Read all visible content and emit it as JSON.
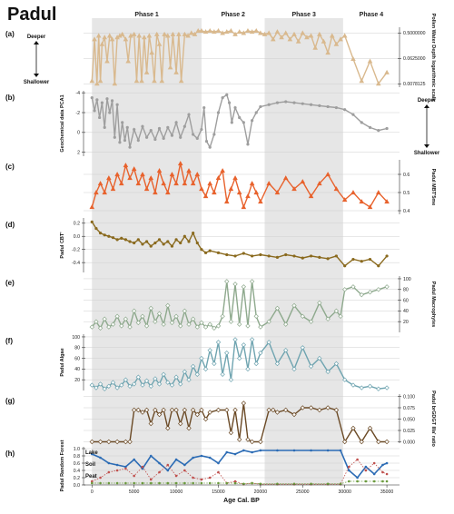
{
  "title": "Padul",
  "phases": [
    {
      "label": "Phase 1",
      "start": 0,
      "end": 13000,
      "shaded": true
    },
    {
      "label": "Phase 2",
      "start": 13000,
      "end": 20500,
      "shaded": false
    },
    {
      "label": "Phase 3",
      "start": 20500,
      "end": 29800,
      "shaded": true
    },
    {
      "label": "Phase 4",
      "start": 29800,
      "end": 36500,
      "shaded": false
    }
  ],
  "x_axis": {
    "label": "Age Cal. BP",
    "min": -1000,
    "max": 36500,
    "ticks": [
      0,
      5000,
      10000,
      15000,
      20000,
      25000,
      30000,
      35000
    ],
    "tick_labels": [
      "0",
      "5000",
      "10000",
      "15000",
      "20000",
      "25000",
      "30000",
      "35000"
    ]
  },
  "colors": {
    "pollen": "#d9b98e",
    "geochem": "#9e9e9e",
    "mbt": "#e8622d",
    "cbt": "#8a6a1e",
    "macrophytes": "#8ea98d",
    "algae": "#6fa4b0",
    "brgdgt": "#6b4a26",
    "lake": "#2c6cb5",
    "soil": "#c0504d",
    "peat": "#6a9a3c",
    "phase_shade": "#e6e6e6"
  },
  "chart_data": [
    {
      "panel": "(a)",
      "type": "line",
      "color_key": "pollen",
      "marker": "triangle",
      "ylabel": "Pollen Water Depth logarithmic scale",
      "left_top": "Deeper",
      "left_bottom": "Shallower",
      "y_scale": "log",
      "ylim": [
        0.006,
        0.8
      ],
      "tick_values": [
        0.5,
        0.0625,
        0.0078125
      ],
      "tick_labels": [
        "0.5000000",
        "0.0625000",
        "0.0078125"
      ],
      "tick_side": "right",
      "x": [
        0,
        300,
        600,
        800,
        1000,
        1200,
        1500,
        1800,
        2100,
        2400,
        2700,
        3000,
        3300,
        3600,
        4000,
        4300,
        4600,
        5000,
        5300,
        5600,
        5900,
        6200,
        6500,
        6800,
        7100,
        7400,
        7700,
        8000,
        8300,
        8600,
        9000,
        9300,
        9600,
        10000,
        10300,
        10600,
        11000,
        11400,
        11800,
        12200,
        12600,
        13000,
        13500,
        14000,
        14500,
        15000,
        15500,
        16000,
        16500,
        17000,
        17500,
        18000,
        18500,
        19000,
        19500,
        20000,
        20500,
        21000,
        21500,
        22000,
        22500,
        23000,
        23500,
        24000,
        24500,
        25000,
        25500,
        26000,
        26500,
        27000,
        27500,
        28000,
        28500,
        29000,
        29500,
        30000,
        31000,
        32000,
        33000,
        34000,
        35000
      ],
      "y": [
        0.01,
        0.3,
        0.008,
        0.4,
        0.01,
        0.2,
        0.35,
        0.05,
        0.4,
        0.3,
        0.008,
        0.35,
        0.4,
        0.45,
        0.3,
        0.05,
        0.4,
        0.45,
        0.01,
        0.4,
        0.01,
        0.35,
        0.02,
        0.4,
        0.1,
        0.01,
        0.45,
        0.2,
        0.01,
        0.45,
        0.4,
        0.03,
        0.45,
        0.02,
        0.45,
        0.01,
        0.45,
        0.4,
        0.5,
        0.45,
        0.6,
        0.6,
        0.55,
        0.6,
        0.55,
        0.6,
        0.5,
        0.55,
        0.6,
        0.45,
        0.55,
        0.5,
        0.6,
        0.55,
        0.6,
        0.5,
        0.45,
        0.5,
        0.3,
        0.55,
        0.35,
        0.5,
        0.3,
        0.45,
        0.25,
        0.5,
        0.35,
        0.4,
        0.15,
        0.45,
        0.25,
        0.1,
        0.4,
        0.2,
        0.3,
        0.4,
        0.06,
        0.01,
        0.05,
        0.008,
        0.02
      ]
    },
    {
      "panel": "(b)",
      "type": "line",
      "color_key": "geochem",
      "marker": "circle",
      "ylabel": "Geochemical data PCA1",
      "right_top": "Deeper",
      "right_bottom": "Shallower",
      "y_scale": "linear",
      "y_inverted": true,
      "ylim": [
        -4.2,
        2.4
      ],
      "tick_values": [
        -4,
        -2,
        0,
        2
      ],
      "tick_labels": [
        "-4",
        "-2",
        "0",
        "2"
      ],
      "tick_side": "left",
      "x": [
        0,
        300,
        600,
        900,
        1200,
        1500,
        1800,
        2100,
        2400,
        2700,
        3000,
        3300,
        3600,
        3900,
        4200,
        4500,
        5000,
        5500,
        6000,
        6500,
        7000,
        7500,
        8000,
        8500,
        9000,
        9500,
        10000,
        10500,
        11000,
        11500,
        12000,
        12500,
        13000,
        13300,
        13600,
        14000,
        14500,
        15000,
        15500,
        16000,
        16300,
        16600,
        17000,
        17500,
        18000,
        18500,
        19000,
        19500,
        20000,
        21000,
        22000,
        23000,
        24000,
        25000,
        26000,
        27000,
        28000,
        29000,
        30000,
        31000,
        32000,
        33000,
        34000,
        35000
      ],
      "y": [
        -3.5,
        -2.2,
        -3.3,
        -1.5,
        -3.0,
        -0.5,
        -3.4,
        -2.0,
        -3.2,
        0.5,
        -2.8,
        1.0,
        -1.0,
        0.8,
        -0.5,
        1.5,
        -0.3,
        0.8,
        -0.6,
        0.5,
        -0.2,
        0.7,
        -0.4,
        0.6,
        -0.5,
        0.3,
        -1.0,
        0.5,
        -0.6,
        -1.8,
        0.2,
        0.6,
        -0.3,
        -2.5,
        0.9,
        1.5,
        0.2,
        -2.0,
        -3.5,
        -3.8,
        -3.0,
        -1.0,
        -2.5,
        -1.5,
        -1.0,
        1.2,
        -1.2,
        -2.0,
        -2.6,
        -2.8,
        -3.0,
        -3.1,
        -3.0,
        -2.9,
        -2.8,
        -2.7,
        -2.6,
        -2.5,
        -2.3,
        -1.8,
        -1.0,
        -0.5,
        -0.2,
        -0.4
      ]
    },
    {
      "panel": "(c)",
      "type": "line",
      "color_key": "mbt",
      "marker": "triangle",
      "ylabel": "Padul MBT'5me",
      "y_scale": "linear",
      "ylim": [
        0.38,
        0.68
      ],
      "tick_values": [
        0.4,
        0.5,
        0.6
      ],
      "tick_labels": [
        "0.4",
        "0.5",
        "0.6"
      ],
      "tick_side": "right",
      "x": [
        0,
        500,
        1000,
        1500,
        2000,
        2500,
        3000,
        3500,
        4000,
        4500,
        5000,
        5500,
        6000,
        6500,
        7000,
        7500,
        8000,
        8500,
        9000,
        9500,
        10000,
        10500,
        11000,
        11500,
        12000,
        12500,
        13000,
        13500,
        14000,
        14500,
        15000,
        15500,
        16000,
        16500,
        17000,
        17500,
        18000,
        18500,
        19000,
        19500,
        20000,
        21000,
        22000,
        23000,
        24000,
        25000,
        26000,
        27000,
        28000,
        29000,
        30000,
        31000,
        32000,
        33000,
        34000,
        35000
      ],
      "y": [
        0.42,
        0.5,
        0.55,
        0.5,
        0.58,
        0.52,
        0.6,
        0.55,
        0.65,
        0.58,
        0.63,
        0.55,
        0.6,
        0.52,
        0.58,
        0.5,
        0.62,
        0.55,
        0.5,
        0.6,
        0.55,
        0.66,
        0.55,
        0.62,
        0.55,
        0.6,
        0.52,
        0.48,
        0.55,
        0.5,
        0.58,
        0.62,
        0.45,
        0.52,
        0.58,
        0.5,
        0.42,
        0.48,
        0.55,
        0.5,
        0.45,
        0.55,
        0.5,
        0.58,
        0.52,
        0.56,
        0.48,
        0.55,
        0.6,
        0.52,
        0.46,
        0.5,
        0.45,
        0.42,
        0.5,
        0.45
      ]
    },
    {
      "panel": "(d)",
      "type": "line",
      "color_key": "cbt",
      "marker": "circle",
      "ylabel": "Padul CBT'",
      "y_scale": "linear",
      "ylim": [
        -0.55,
        0.28
      ],
      "tick_values": [
        0.2,
        0.0,
        -0.2,
        -0.4
      ],
      "tick_labels": [
        "0.2",
        "0.0",
        "-0.2",
        "-0.4"
      ],
      "tick_side": "left",
      "x": [
        0,
        500,
        1000,
        1500,
        2000,
        2500,
        3000,
        3500,
        4000,
        4500,
        5000,
        5500,
        6000,
        6500,
        7000,
        7500,
        8000,
        8500,
        9000,
        9500,
        10000,
        10500,
        11000,
        11500,
        12000,
        12500,
        13000,
        13500,
        14000,
        15000,
        16000,
        17000,
        18000,
        19000,
        20000,
        21000,
        22000,
        23000,
        24000,
        25000,
        26000,
        27000,
        28000,
        29000,
        30000,
        31000,
        32000,
        33000,
        34000,
        35000
      ],
      "y": [
        0.22,
        0.12,
        0.05,
        0.02,
        0.0,
        -0.02,
        -0.05,
        -0.03,
        -0.05,
        -0.08,
        -0.1,
        -0.05,
        -0.12,
        -0.08,
        -0.15,
        -0.1,
        -0.05,
        -0.12,
        -0.08,
        -0.15,
        -0.05,
        -0.1,
        0.0,
        -0.08,
        0.05,
        -0.1,
        -0.2,
        -0.25,
        -0.22,
        -0.25,
        -0.28,
        -0.3,
        -0.26,
        -0.3,
        -0.28,
        -0.3,
        -0.32,
        -0.28,
        -0.3,
        -0.33,
        -0.3,
        -0.32,
        -0.34,
        -0.3,
        -0.45,
        -0.35,
        -0.38,
        -0.35,
        -0.45,
        -0.3
      ]
    },
    {
      "panel": "(e)",
      "type": "line",
      "color_key": "macrophytes",
      "marker": "diamond",
      "ylabel": "Padul Macrophytes",
      "y_scale": "linear",
      "ylim": [
        0,
        105
      ],
      "tick_values": [
        20,
        40,
        60,
        80,
        100
      ],
      "tick_labels": [
        "20",
        "40",
        "60",
        "80",
        "100"
      ],
      "tick_side": "right",
      "x": [
        0,
        500,
        1000,
        1500,
        2000,
        2500,
        3000,
        3500,
        4000,
        4500,
        5000,
        5500,
        6000,
        6500,
        7000,
        7500,
        8000,
        8500,
        9000,
        9500,
        10000,
        10500,
        11000,
        11500,
        12000,
        12500,
        13000,
        13500,
        14000,
        14500,
        15000,
        15500,
        16000,
        16500,
        17000,
        17500,
        18000,
        18500,
        19000,
        19500,
        20000,
        21000,
        22000,
        23000,
        24000,
        25000,
        26000,
        27000,
        28000,
        29000,
        29500,
        30000,
        31000,
        32000,
        33000,
        34000,
        35000
      ],
      "y": [
        10,
        20,
        8,
        25,
        10,
        15,
        30,
        12,
        25,
        10,
        40,
        18,
        30,
        12,
        45,
        20,
        35,
        15,
        50,
        18,
        30,
        12,
        40,
        15,
        25,
        10,
        18,
        10,
        15,
        8,
        12,
        30,
        95,
        20,
        90,
        15,
        85,
        12,
        95,
        30,
        10,
        20,
        45,
        15,
        50,
        30,
        20,
        55,
        25,
        40,
        30,
        80,
        85,
        70,
        75,
        80,
        85
      ]
    },
    {
      "panel": "(f)",
      "type": "line",
      "color_key": "algae",
      "marker": "diamond",
      "ylabel": "Padul Algae",
      "y_scale": "linear",
      "ylim": [
        0,
        105
      ],
      "tick_values": [
        20,
        40,
        60,
        80,
        100
      ],
      "tick_labels": [
        "20",
        "40",
        "60",
        "80",
        "100"
      ],
      "tick_side": "left",
      "x": [
        0,
        500,
        1000,
        1500,
        2000,
        2500,
        3000,
        3500,
        4000,
        4500,
        5000,
        5500,
        6000,
        6500,
        7000,
        7500,
        8000,
        8500,
        9000,
        9500,
        10000,
        10500,
        11000,
        11500,
        12000,
        12500,
        13000,
        13500,
        14000,
        14500,
        15000,
        15500,
        16000,
        16500,
        17000,
        17500,
        18000,
        18500,
        19000,
        19500,
        20000,
        21000,
        22000,
        23000,
        24000,
        25000,
        26000,
        27000,
        28000,
        29000,
        30000,
        31000,
        32000,
        33000,
        34000,
        35000
      ],
      "y": [
        10,
        5,
        12,
        3,
        8,
        15,
        5,
        10,
        20,
        8,
        12,
        25,
        10,
        18,
        8,
        22,
        12,
        30,
        15,
        10,
        25,
        12,
        35,
        20,
        45,
        30,
        60,
        40,
        75,
        50,
        90,
        30,
        70,
        20,
        95,
        60,
        85,
        40,
        95,
        50,
        70,
        90,
        50,
        75,
        40,
        80,
        45,
        60,
        35,
        50,
        20,
        10,
        5,
        8,
        3,
        5
      ]
    },
    {
      "panel": "(g)",
      "type": "line",
      "color_key": "brgdgt",
      "marker": "diamond",
      "ylabel": "Padul brGDGT IIIa' ratio",
      "y_scale": "linear",
      "ylim": [
        -0.003,
        0.105
      ],
      "tick_values": [
        0.0,
        0.025,
        0.05,
        0.075,
        0.1
      ],
      "tick_labels": [
        "0.000",
        "0.025",
        "0.050",
        "0.075",
        "0.100"
      ],
      "tick_side": "right",
      "x": [
        0,
        1000,
        2000,
        3000,
        4000,
        4500,
        5000,
        5500,
        6000,
        6500,
        7000,
        7500,
        8000,
        8500,
        9000,
        9500,
        10000,
        10500,
        11000,
        11500,
        12000,
        12500,
        13000,
        13500,
        14000,
        15000,
        16000,
        16500,
        17000,
        17500,
        18000,
        18500,
        19000,
        20000,
        21000,
        21500,
        22000,
        23000,
        24000,
        25000,
        26000,
        27000,
        28000,
        29000,
        30000,
        31000,
        32000,
        33000,
        34000,
        35000
      ],
      "y": [
        0.0,
        0.0,
        0.0,
        0.0,
        0.0,
        0.0,
        0.07,
        0.07,
        0.065,
        0.07,
        0.04,
        0.07,
        0.06,
        0.07,
        0.03,
        0.07,
        0.07,
        0.04,
        0.07,
        0.03,
        0.07,
        0.06,
        0.07,
        0.05,
        0.065,
        0.07,
        0.07,
        0.02,
        0.07,
        0.005,
        0.085,
        0.005,
        0.0,
        0.0,
        0.07,
        0.07,
        0.065,
        0.07,
        0.06,
        0.075,
        0.075,
        0.07,
        0.075,
        0.07,
        0.0,
        0.03,
        0.0,
        0.03,
        0.0,
        0.0
      ]
    },
    {
      "panel": "(h)",
      "type": "line",
      "ylabel": "Padul Random Forest",
      "y_scale": "linear",
      "ylim": [
        0,
        1.05
      ],
      "tick_values": [
        0.0,
        0.2,
        0.4,
        0.6,
        0.8,
        1.0
      ],
      "tick_labels": [
        "0.0",
        "0.2",
        "0.4",
        "0.6",
        "0.8",
        "1.0"
      ],
      "tick_side": "left",
      "x": [
        0,
        1000,
        2000,
        3000,
        4000,
        5000,
        6000,
        7000,
        8000,
        9000,
        10000,
        11000,
        12000,
        13000,
        14000,
        15000,
        16000,
        17000,
        18000,
        19000,
        20000,
        22000,
        24000,
        26000,
        28000,
        29500,
        30500,
        31500,
        32500,
        33500,
        34500,
        35000
      ],
      "series": [
        {
          "name": "Lake",
          "color_key": "lake",
          "marker": "circle",
          "y": [
            0.85,
            0.75,
            0.6,
            0.55,
            0.5,
            0.7,
            0.45,
            0.8,
            0.6,
            0.4,
            0.7,
            0.55,
            0.75,
            0.8,
            0.75,
            0.6,
            0.9,
            0.85,
            0.95,
            0.9,
            0.95,
            0.95,
            0.95,
            0.95,
            0.95,
            0.95,
            0.4,
            0.2,
            0.5,
            0.3,
            0.55,
            0.6
          ]
        },
        {
          "name": "Soil",
          "color_key": "soil",
          "marker": "circle",
          "y": [
            0.1,
            0.2,
            0.35,
            0.4,
            0.45,
            0.25,
            0.5,
            0.15,
            0.35,
            0.55,
            0.25,
            0.4,
            0.2,
            0.15,
            0.2,
            0.35,
            0.05,
            0.1,
            0.02,
            0.05,
            0.02,
            0.02,
            0.02,
            0.02,
            0.02,
            0.02,
            0.5,
            0.7,
            0.4,
            0.6,
            0.35,
            0.3
          ]
        },
        {
          "name": "Peat",
          "color_key": "peat",
          "marker": "circle",
          "y": [
            0.05,
            0.05,
            0.05,
            0.05,
            0.05,
            0.05,
            0.05,
            0.05,
            0.05,
            0.05,
            0.05,
            0.05,
            0.05,
            0.05,
            0.05,
            0.05,
            0.05,
            0.05,
            0.03,
            0.05,
            0.03,
            0.03,
            0.03,
            0.03,
            0.03,
            0.03,
            0.1,
            0.1,
            0.1,
            0.1,
            0.1,
            0.1
          ]
        }
      ]
    }
  ]
}
